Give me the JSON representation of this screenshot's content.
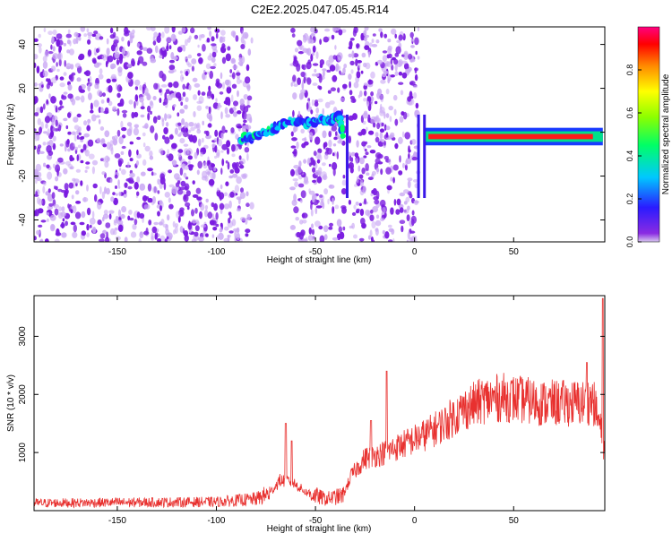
{
  "title": "C2E2.2025.047.05.45.R14",
  "colors": {
    "frame": "#000000",
    "snr_line": "#e8312f",
    "scatter_main": "#7a1be0",
    "scatter_light": "#caa8f4"
  },
  "chart_data": [
    {
      "type": "heatmap",
      "xlabel": "Height of straight line (km)",
      "ylabel": "Frequency (Hz)",
      "xlim": [
        -192,
        96
      ],
      "ylim": [
        -50,
        48
      ],
      "xticks": [
        -150,
        -100,
        -50,
        0,
        50
      ],
      "yticks": [
        -40,
        -20,
        0,
        20,
        40
      ],
      "grid": false,
      "colorbar": {
        "label": "Normalized spectral amplitude",
        "range": [
          0,
          1
        ],
        "ticks": [
          "0.0",
          "0.2",
          "0.4",
          "0.6",
          "0.8"
        ],
        "colormap": "hsv-rainbow (purple → blue → cyan → green → yellow → red → magenta)"
      },
      "features": {
        "noise_regions_km": [
          [
            -192,
            -82
          ],
          [
            -62,
            -35
          ],
          [
            -33,
            2
          ]
        ],
        "ridge_points": [
          {
            "x": -88,
            "y": -3
          },
          {
            "x": -80,
            "y": -2
          },
          {
            "x": -72,
            "y": 1
          },
          {
            "x": -65,
            "y": 5
          },
          {
            "x": -55,
            "y": 4
          },
          {
            "x": -48,
            "y": 5
          },
          {
            "x": -42,
            "y": 6
          },
          {
            "x": -38,
            "y": 8
          },
          {
            "x": -36,
            "y": -2
          }
        ],
        "steady_band": {
          "x_start": 5,
          "x_end": 95,
          "y": -2,
          "amplitude": 1.0
        },
        "transient_at_km": [
          -34,
          2,
          5
        ]
      }
    },
    {
      "type": "line",
      "xlabel": "Height of straight line (km)",
      "ylabel": "SNR (10 * v/v)",
      "xlim": [
        -192,
        96
      ],
      "ylim": [
        0,
        3700
      ],
      "xticks": [
        -150,
        -100,
        -50,
        0,
        50
      ],
      "yticks": [
        1000,
        2000,
        3000
      ],
      "grid": false,
      "trend": [
        {
          "x": -192,
          "y": 130
        },
        {
          "x": -150,
          "y": 140
        },
        {
          "x": -100,
          "y": 150
        },
        {
          "x": -80,
          "y": 200
        },
        {
          "x": -73,
          "y": 300
        },
        {
          "x": -68,
          "y": 520
        },
        {
          "x": -62,
          "y": 500
        },
        {
          "x": -55,
          "y": 320
        },
        {
          "x": -45,
          "y": 200
        },
        {
          "x": -36,
          "y": 260
        },
        {
          "x": -32,
          "y": 600
        },
        {
          "x": -25,
          "y": 900
        },
        {
          "x": -15,
          "y": 1000
        },
        {
          "x": -5,
          "y": 1150
        },
        {
          "x": 5,
          "y": 1300
        },
        {
          "x": 15,
          "y": 1500
        },
        {
          "x": 25,
          "y": 1750
        },
        {
          "x": 35,
          "y": 1900
        },
        {
          "x": 45,
          "y": 1950
        },
        {
          "x": 55,
          "y": 1900
        },
        {
          "x": 65,
          "y": 1850
        },
        {
          "x": 75,
          "y": 1850
        },
        {
          "x": 85,
          "y": 1850
        },
        {
          "x": 90,
          "y": 1900
        },
        {
          "x": 94,
          "y": 1400
        },
        {
          "x": 96,
          "y": 1000
        }
      ],
      "spikes": [
        {
          "x": -65,
          "y": 1500
        },
        {
          "x": -62,
          "y": 1200
        },
        {
          "x": -14,
          "y": 2400
        },
        {
          "x": -22,
          "y": 1550
        },
        {
          "x": 87,
          "y": 2550
        },
        {
          "x": 95,
          "y": 3650
        }
      ]
    }
  ]
}
